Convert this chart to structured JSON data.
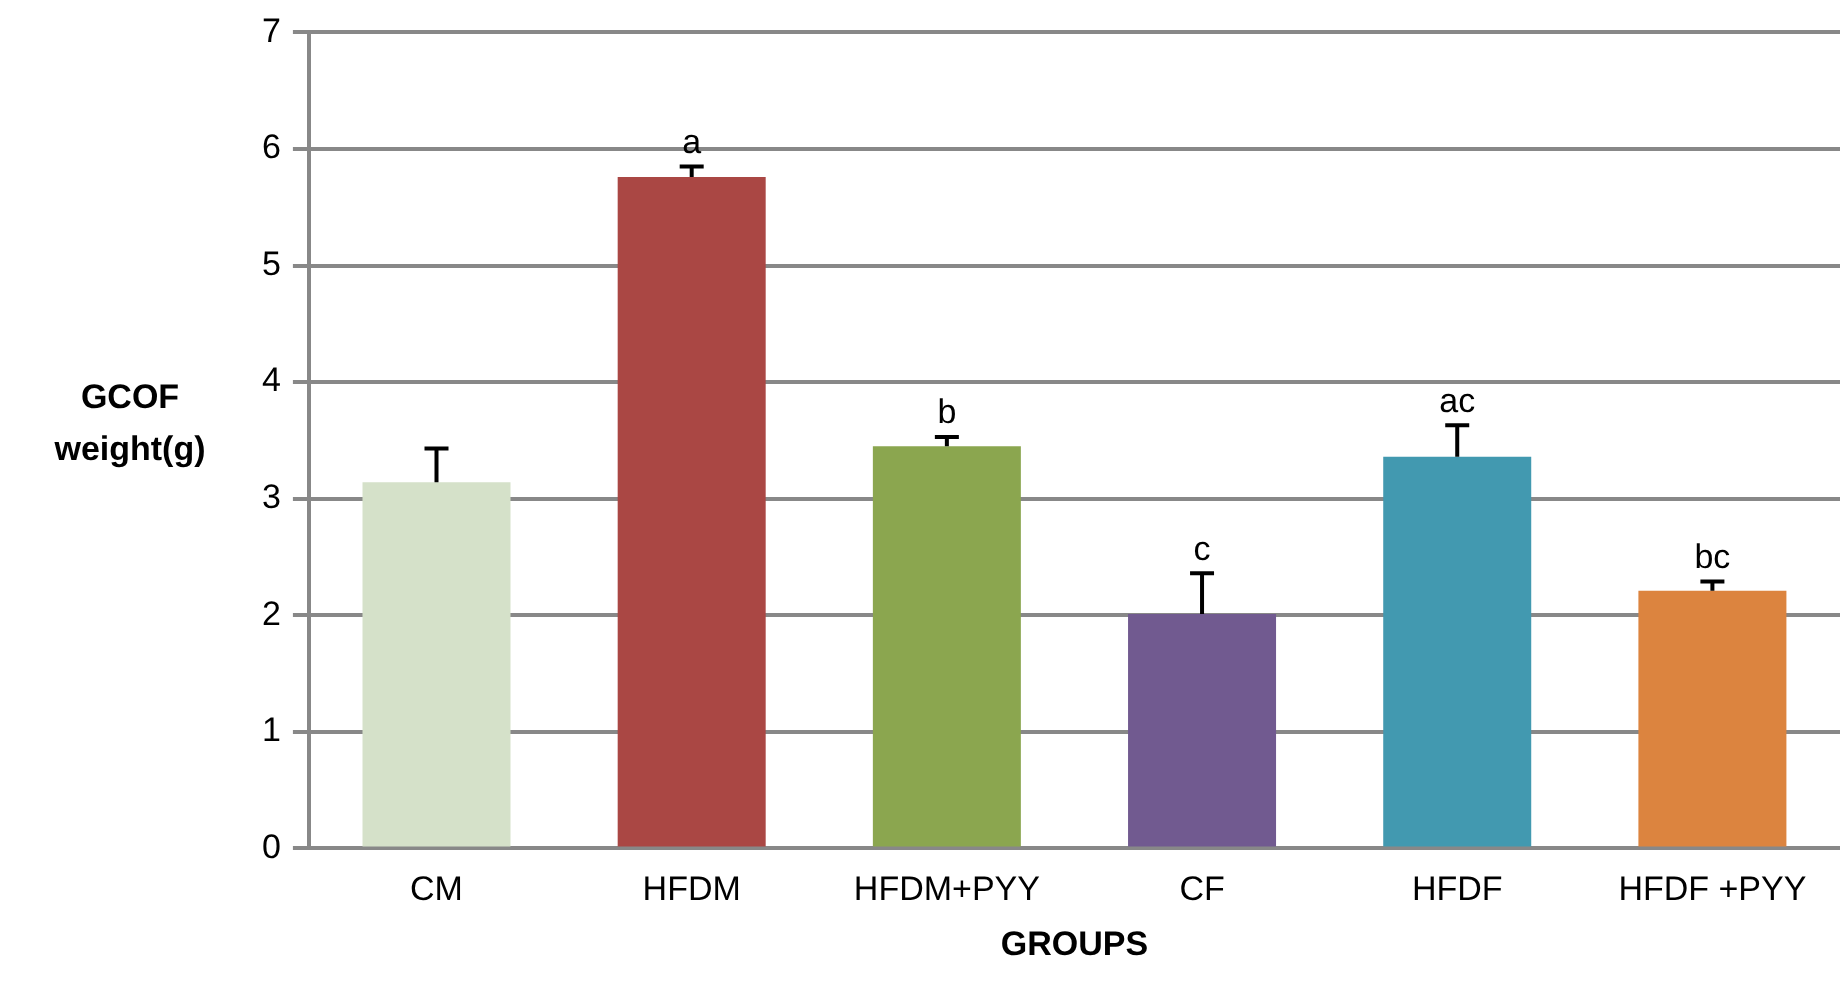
{
  "chart_data": {
    "type": "bar",
    "xlabel": "GROUPS",
    "ylabel": "GCOF weight(g)",
    "categories": [
      "CM",
      "HFDM",
      "HFDM+PYY",
      "CF",
      "HFDF",
      "HFDF +PYY"
    ],
    "values": [
      3.14,
      5.76,
      3.45,
      2.01,
      3.36,
      2.21
    ],
    "colors": [
      "#d5e1c9",
      "#aa4744",
      "#8ba64f",
      "#715a90",
      "#4299b0",
      "#dc843f"
    ],
    "errors": [
      [
        3.14,
        3.43
      ],
      [
        5.76,
        5.85
      ],
      [
        3.45,
        3.53
      ],
      [
        2.01,
        2.36
      ],
      [
        3.36,
        3.63
      ],
      [
        2.21,
        2.29
      ]
    ],
    "annotations": [
      {
        "text": "a",
        "x": "HFDM",
        "y": 5.76
      },
      {
        "text": "b",
        "x": "HFDM+PYY",
        "y": 3.45
      },
      {
        "text": "c",
        "x": "CF",
        "y": 2.01
      },
      {
        "text": "ac",
        "x": "HFDF",
        "y": 3.36
      },
      {
        "text": "bc",
        "x": "HFDF +PYY",
        "y": 2.21
      }
    ],
    "ylim": [
      0,
      7
    ],
    "yticks": [
      0,
      1,
      2,
      3,
      4,
      5,
      6,
      7
    ],
    "grid": "y",
    "legend": false
  }
}
